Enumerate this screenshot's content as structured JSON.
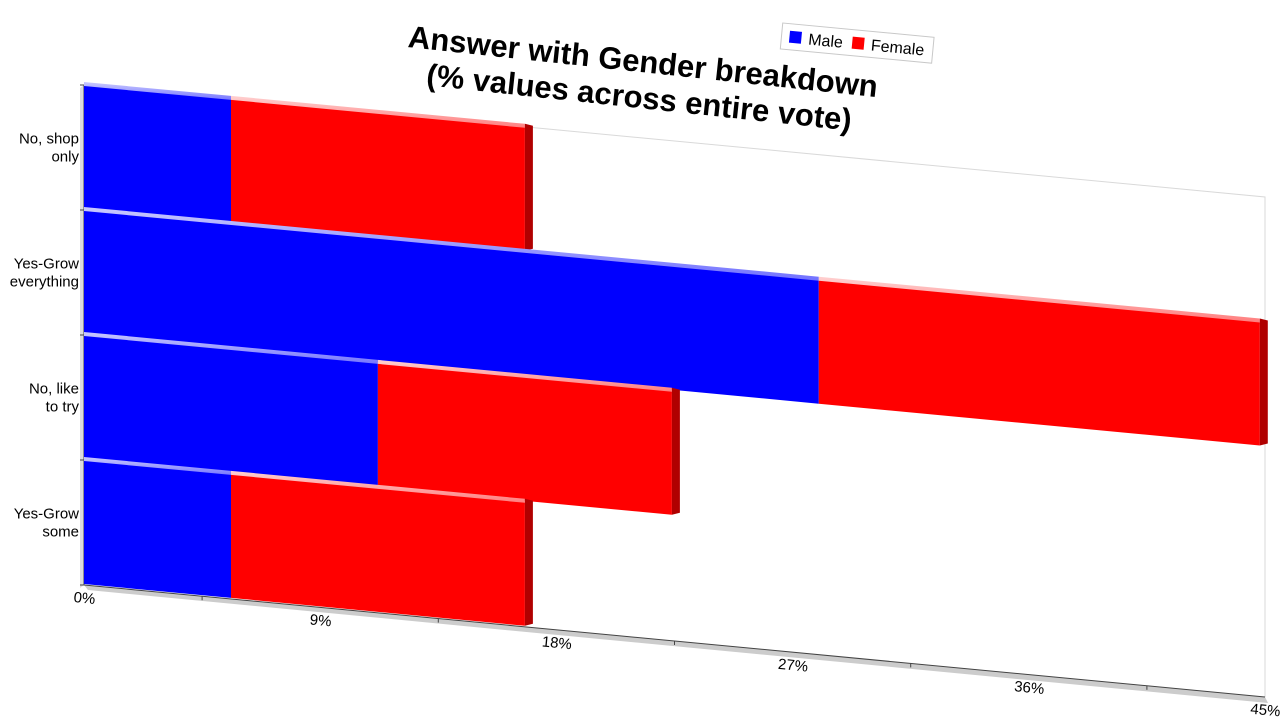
{
  "chart_data": {
    "type": "bar",
    "orientation": "horizontal",
    "stacked": true,
    "title": "Answer with Gender breakdown",
    "subtitle": "(% values across entire vote)",
    "categories": [
      [
        "No, shop",
        "only"
      ],
      [
        "Yes-Grow",
        "everything"
      ],
      [
        "No, like",
        "to try"
      ],
      [
        "Yes-Grow",
        "some"
      ]
    ],
    "series": [
      {
        "name": "Male",
        "color": "#0000ff",
        "values": [
          5.6,
          28.0,
          11.2,
          5.6
        ]
      },
      {
        "name": "Female",
        "color": "#ff0000",
        "values": [
          11.2,
          16.8,
          11.2,
          11.2
        ]
      }
    ],
    "x_ticks": [
      "0%",
      "9%",
      "18%",
      "27%",
      "36%",
      "45%"
    ],
    "xlim": [
      0,
      45
    ],
    "legend_position": "top-right",
    "grid": false
  }
}
